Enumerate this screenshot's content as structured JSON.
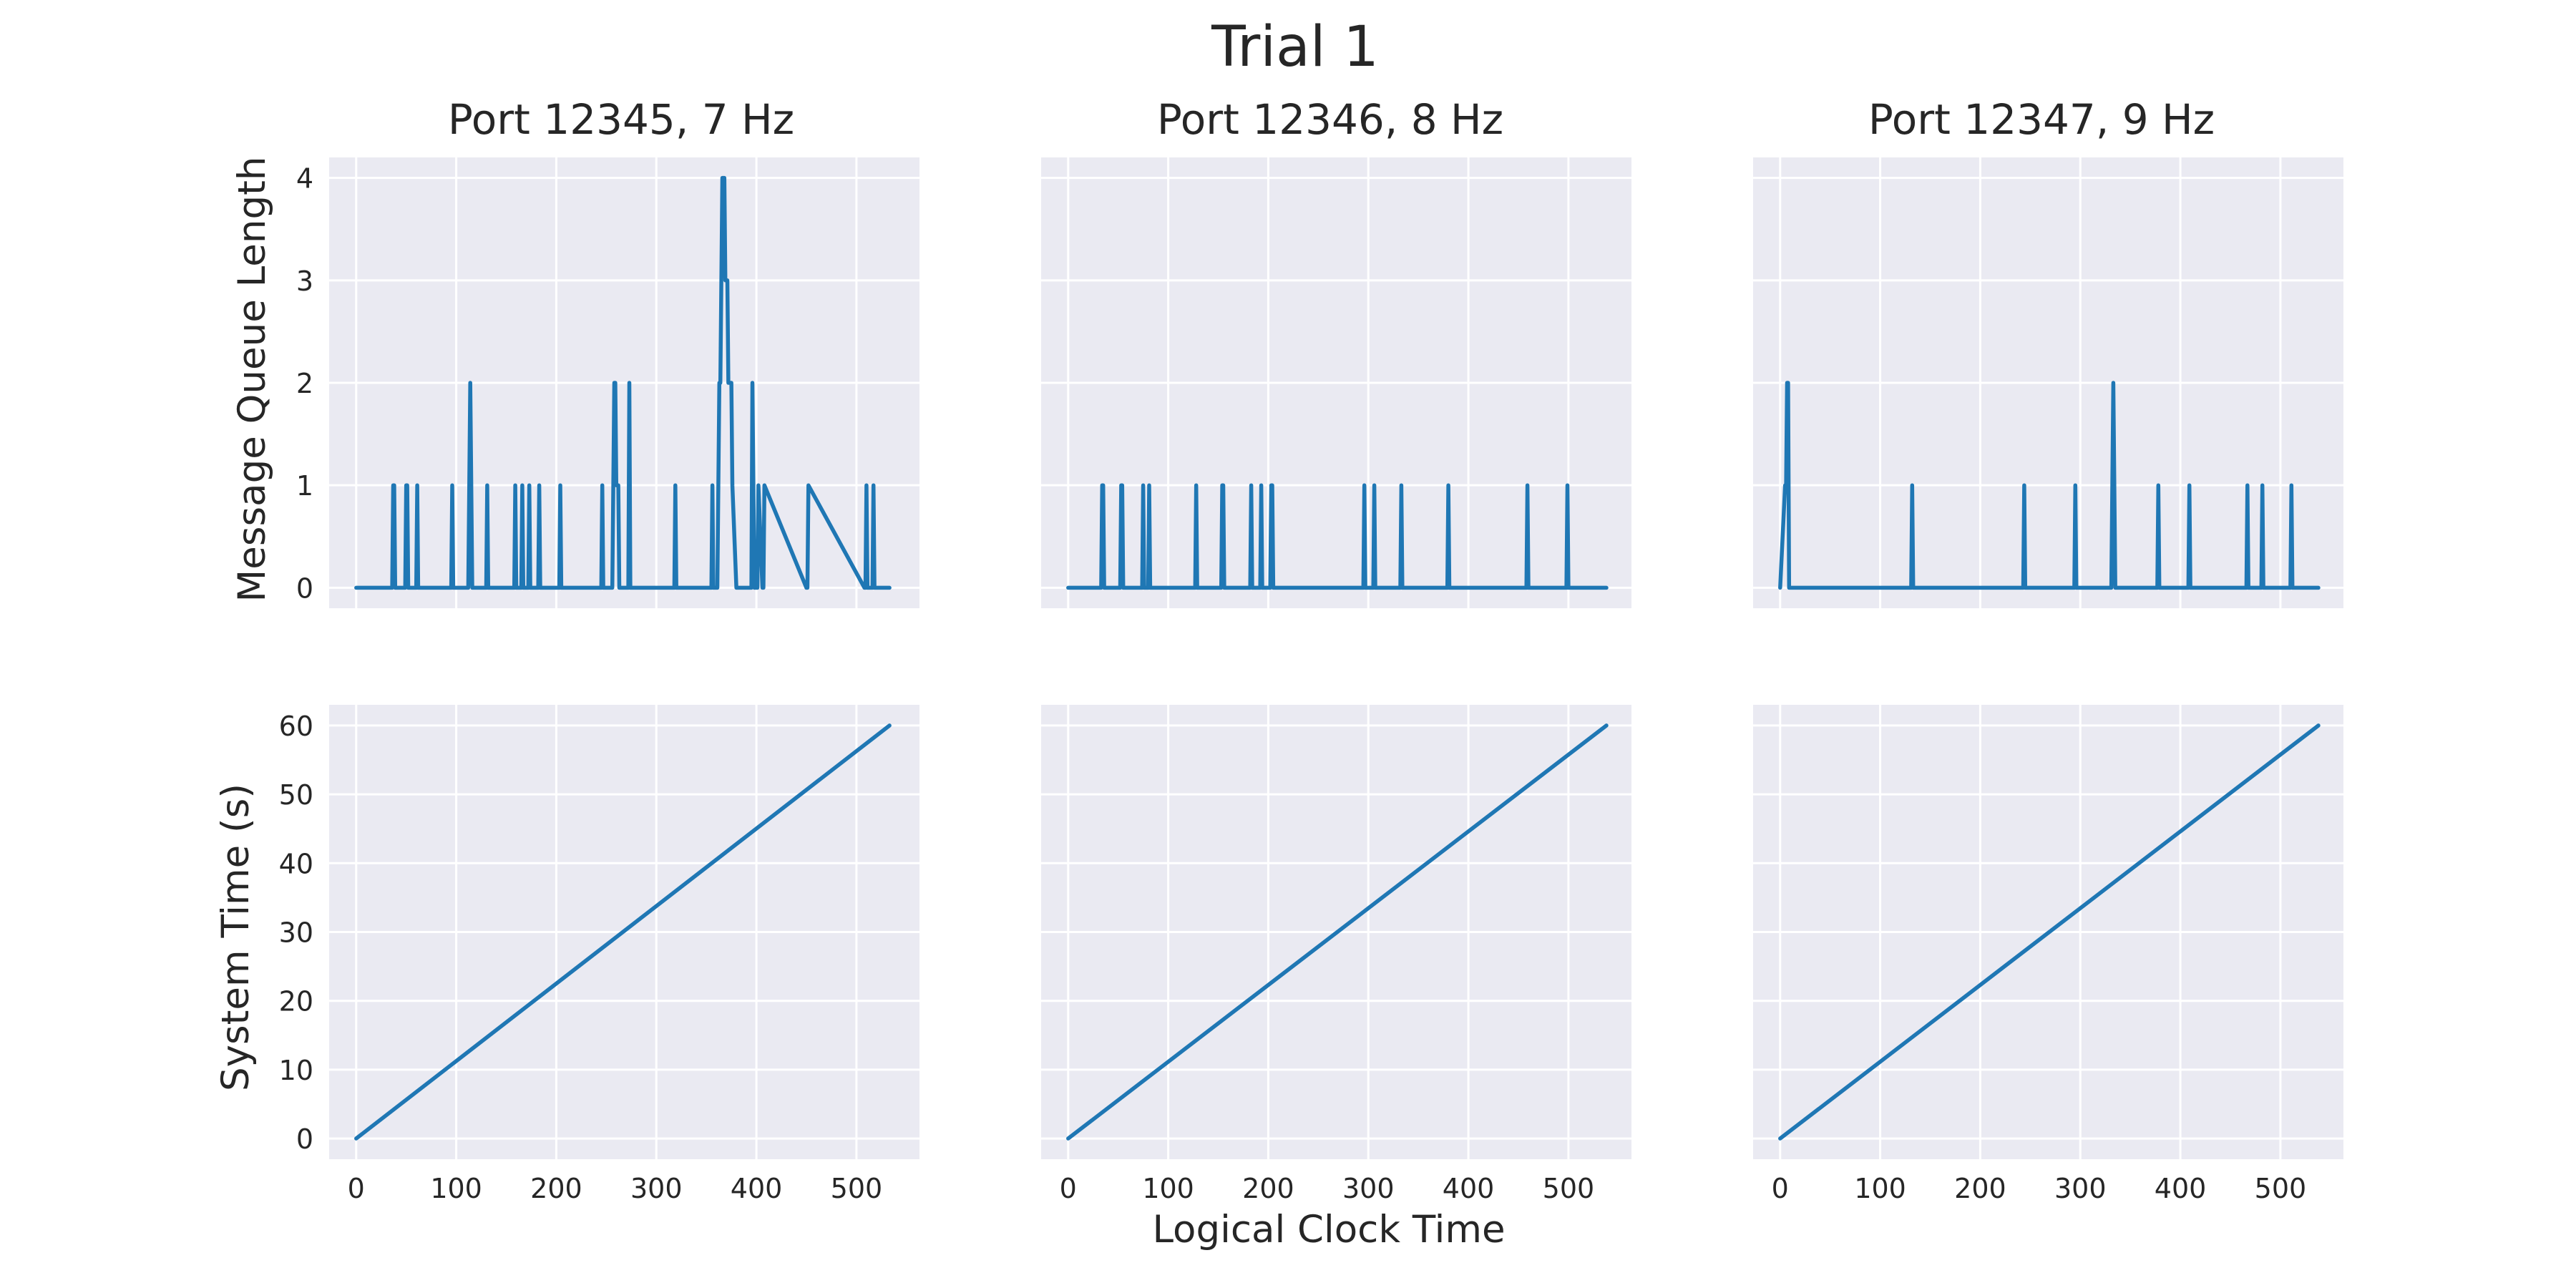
{
  "chart_data": {
    "type": "line",
    "title": "Trial 1",
    "xlabel": "Logical Clock Time",
    "xticks": [
      0,
      100,
      200,
      300,
      400,
      500
    ],
    "grid": true,
    "rows": [
      {
        "ylabel": "Message Queue Length",
        "ylim": [
          -0.2,
          4.2
        ],
        "yticks": [
          0,
          1,
          2,
          3,
          4
        ]
      },
      {
        "ylabel": "System Time (s)",
        "ylim": [
          -3,
          63
        ],
        "yticks": [
          0,
          10,
          20,
          30,
          40,
          50,
          60
        ]
      }
    ],
    "subplots": [
      {
        "title": "Port 12345, 7 Hz",
        "xlim": [
          -27,
          563
        ],
        "queue_series": {
          "x": [
            0,
            36,
            37,
            38,
            39,
            40,
            49,
            50,
            51,
            52,
            53,
            60,
            61,
            62,
            95,
            96,
            97,
            112,
            113,
            114,
            115,
            116,
            130,
            131,
            132,
            158,
            159,
            160,
            161,
            162,
            165,
            166,
            167,
            172,
            173,
            174,
            182,
            183,
            184,
            203,
            204,
            205,
            245,
            246,
            247,
            256,
            257,
            258,
            259,
            260,
            261,
            262,
            263,
            264,
            265,
            272,
            273,
            274,
            318,
            319,
            320,
            355,
            356,
            357,
            361,
            362,
            363,
            364,
            365,
            366,
            367,
            368,
            369,
            370,
            371,
            372,
            373,
            374,
            375,
            376,
            380,
            381,
            395,
            396,
            397,
            398,
            401,
            402,
            406,
            407,
            408,
            450,
            451,
            452,
            508,
            509,
            510,
            511,
            516,
            517,
            518,
            533
          ],
          "y": [
            0,
            0,
            1,
            1,
            0,
            0,
            0,
            1,
            1,
            0,
            0,
            0,
            1,
            0,
            0,
            1,
            0,
            0,
            1,
            2,
            1,
            0,
            0,
            1,
            0,
            0,
            1,
            0,
            0,
            0,
            0,
            1,
            0,
            0,
            1,
            0,
            0,
            1,
            0,
            0,
            1,
            0,
            0,
            1,
            0,
            0,
            1,
            2,
            2,
            1,
            1,
            1,
            0,
            0,
            0,
            0,
            2,
            0,
            0,
            1,
            0,
            0,
            1,
            0,
            0,
            1,
            2,
            2,
            3,
            4,
            4,
            4,
            3,
            3,
            3,
            2,
            2,
            2,
            2,
            1,
            0,
            0,
            0,
            2,
            1,
            0,
            0,
            1,
            0,
            0,
            1,
            0,
            0,
            1,
            0,
            0,
            1,
            0,
            0,
            1,
            0,
            0
          ]
        },
        "time_series": {
          "x": [
            0,
            533
          ],
          "y": [
            0,
            60
          ]
        }
      },
      {
        "title": "Port 12346, 8 Hz",
        "xlim": [
          -27,
          563
        ],
        "queue_series": {
          "x": [
            0,
            33,
            34,
            35,
            36,
            37,
            52,
            53,
            54,
            55,
            56,
            74,
            75,
            76,
            77,
            80,
            81,
            82,
            127,
            128,
            129,
            153,
            154,
            155,
            156,
            157,
            182,
            183,
            184,
            192,
            193,
            194,
            202,
            203,
            204,
            205,
            206,
            295,
            296,
            297,
            305,
            306,
            307,
            332,
            333,
            334,
            379,
            380,
            381,
            458,
            459,
            460,
            498,
            499,
            500,
            538
          ],
          "y": [
            0,
            0,
            1,
            1,
            0,
            0,
            0,
            1,
            1,
            0,
            0,
            0,
            1,
            0,
            0,
            0,
            1,
            0,
            0,
            1,
            0,
            0,
            1,
            1,
            0,
            0,
            0,
            1,
            0,
            0,
            1,
            0,
            0,
            1,
            1,
            0,
            0,
            0,
            1,
            0,
            0,
            1,
            0,
            0,
            1,
            0,
            0,
            1,
            0,
            0,
            1,
            0,
            0,
            1,
            0,
            0
          ]
        },
        "time_series": {
          "x": [
            0,
            538
          ],
          "y": [
            0,
            60
          ]
        }
      },
      {
        "title": "Port 12347, 9 Hz",
        "xlim": [
          -27,
          563
        ],
        "queue_series": {
          "x": [
            0,
            5,
            6,
            7,
            8,
            9,
            10,
            131,
            132,
            133,
            243,
            244,
            245,
            294,
            295,
            296,
            331,
            332,
            333,
            334,
            335,
            377,
            378,
            379,
            408,
            409,
            410,
            466,
            467,
            468,
            481,
            482,
            483,
            510,
            511,
            512,
            538
          ],
          "y": [
            0,
            1,
            1,
            2,
            2,
            0,
            0,
            0,
            1,
            0,
            0,
            1,
            0,
            0,
            1,
            0,
            0,
            1,
            2,
            1,
            0,
            0,
            1,
            0,
            0,
            1,
            0,
            0,
            1,
            0,
            0,
            1,
            0,
            0,
            1,
            0,
            0
          ]
        },
        "time_series": {
          "x": [
            0,
            538
          ],
          "y": [
            0,
            60
          ]
        }
      }
    ]
  }
}
